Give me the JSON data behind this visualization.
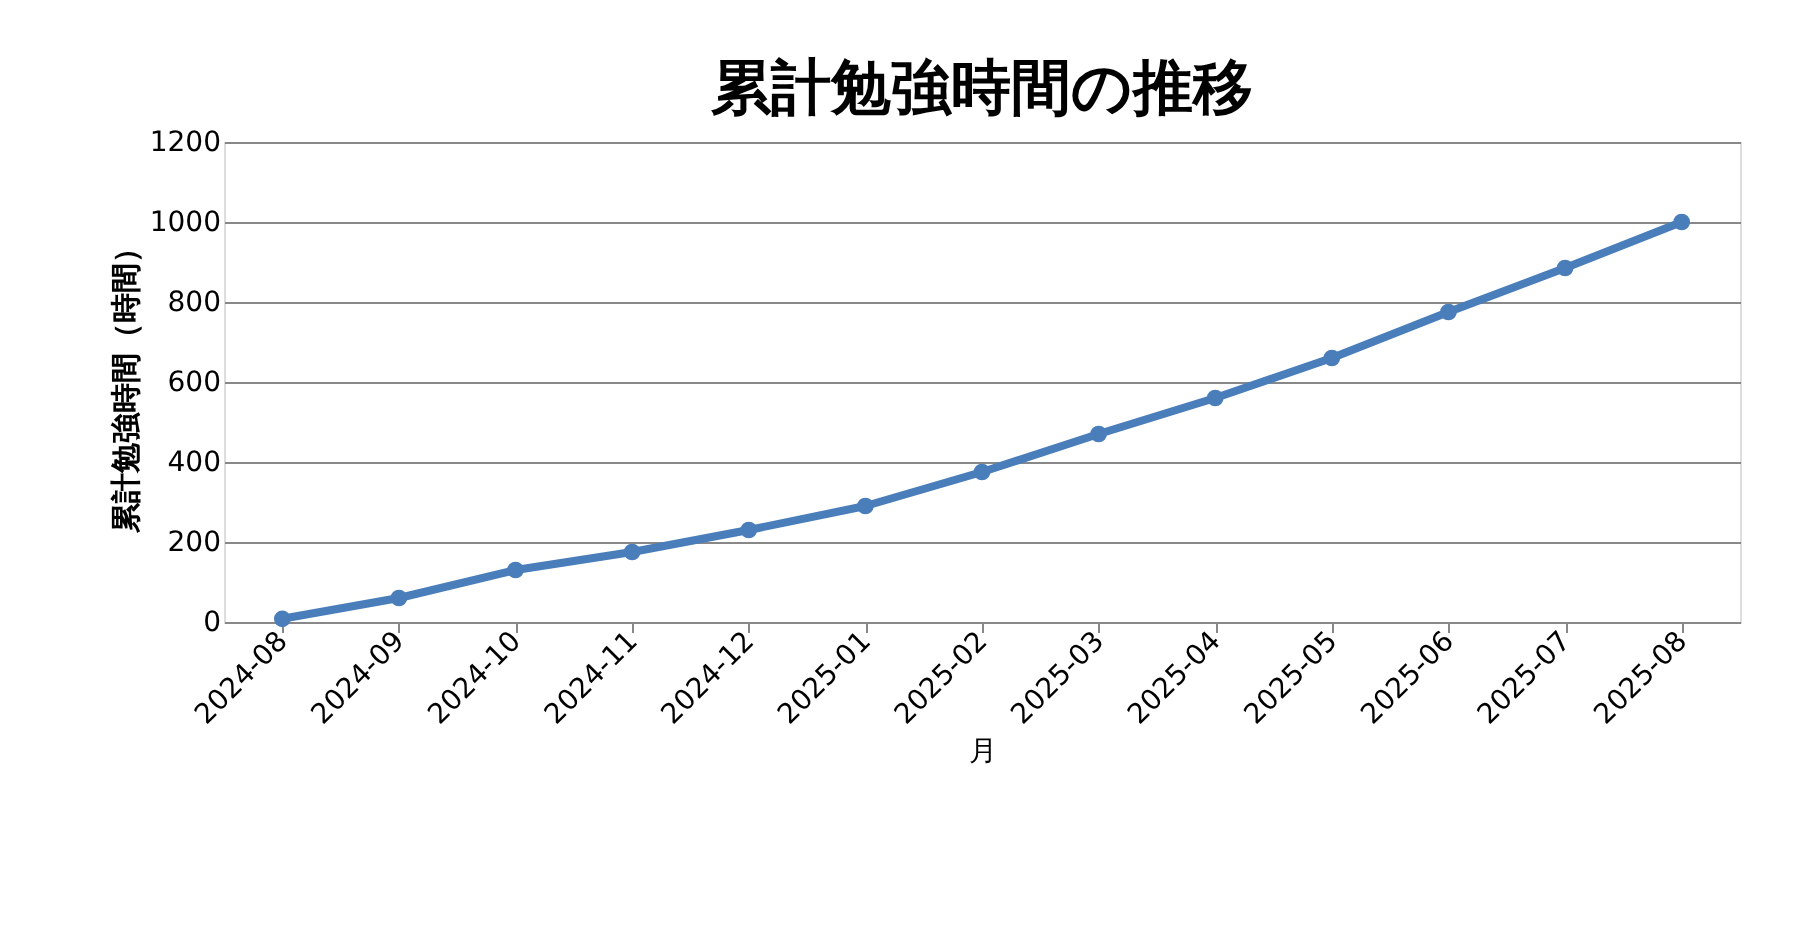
{
  "chart_data": {
    "type": "line",
    "title": "累計勉強時間の推移",
    "xlabel": "月",
    "ylabel": "累計勉強時間（時間）",
    "categories": [
      "2024-08",
      "2024-09",
      "2024-10",
      "2024-11",
      "2024-12",
      "2025-01",
      "2025-02",
      "2025-03",
      "2025-04",
      "2025-05",
      "2025-06",
      "2025-07",
      "2025-08"
    ],
    "series": [
      {
        "color": "#4a7ebb",
        "values": [
          8,
          60,
          130,
          175,
          230,
          290,
          375,
          470,
          560,
          660,
          775,
          885,
          1000
        ]
      }
    ],
    "ylim": [
      0,
      1200
    ],
    "yticks": [
      0,
      200,
      400,
      600,
      800,
      1000,
      1200
    ],
    "grid": "y",
    "marker": "circle",
    "line_style": "solid"
  }
}
